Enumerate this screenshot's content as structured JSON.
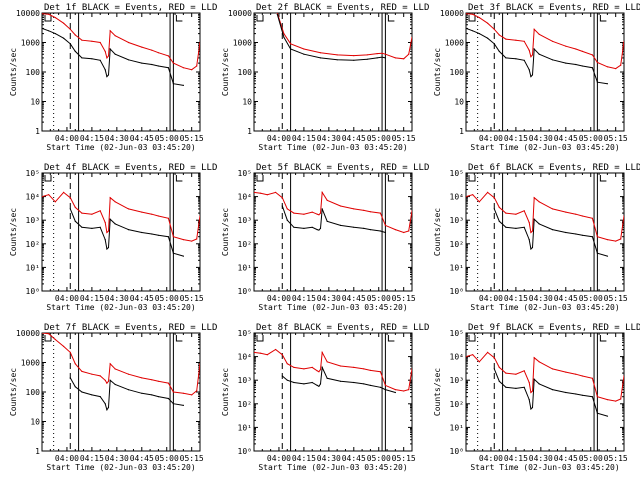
{
  "figure": {
    "xlabel": "Start Time (02-Jun-03 03:45:20)",
    "ylabel": "Counts/sec",
    "x_tick_labels": [
      "04:00",
      "04:15",
      "04:30",
      "04:45",
      "05:00",
      "05:15"
    ],
    "x_range_minutes_after_03_45": [
      0,
      95
    ],
    "colors": {
      "events": "#000000",
      "lld": "#e00000"
    }
  },
  "chart_data": [
    {
      "type": "line",
      "title": "Det 1f BLACK = Events, RED = LLD",
      "yscale": "log",
      "ylim": [
        1,
        10000
      ],
      "y_tick_labels": [
        "1",
        "10",
        "100",
        "1000",
        "10000"
      ],
      "markers": {
        "dotted": 7,
        "dashed": 17,
        "solid": 22,
        "gap_start": 77,
        "gap_end": 79
      },
      "x": [
        0,
        4,
        8,
        13,
        17,
        20,
        24,
        30,
        35,
        38,
        39,
        40,
        41,
        44,
        52,
        60,
        66,
        70,
        76,
        79,
        85,
        90,
        93,
        95
      ],
      "series": [
        {
          "name": "Events",
          "values": [
            3000,
            2500,
            2000,
            1400,
            900,
            500,
            300,
            280,
            250,
            120,
            70,
            80,
            600,
            400,
            260,
            200,
            180,
            160,
            140,
            40,
            35,
            null,
            null,
            null
          ]
        },
        {
          "name": "LLD",
          "values": [
            9500,
            9000,
            7000,
            4500,
            2800,
            1800,
            1200,
            1100,
            1000,
            500,
            300,
            350,
            2500,
            1700,
            1000,
            700,
            550,
            450,
            350,
            200,
            140,
            120,
            160,
            1000
          ]
        }
      ]
    },
    {
      "type": "line",
      "title": "Det 2f BLACK = Events, RED = LLD",
      "yscale": "log",
      "ylim": [
        1,
        10000
      ],
      "y_tick_labels": [
        "1",
        "10",
        "100",
        "1000",
        "10000"
      ],
      "markers": {
        "dotted": null,
        "dashed": 17,
        "solid": 22,
        "gap_start": 77,
        "gap_end": 79
      },
      "x": [
        0,
        3,
        6,
        10,
        14,
        18,
        22,
        30,
        40,
        50,
        60,
        68,
        74,
        77,
        79,
        85,
        90,
        93,
        95
      ],
      "series": [
        {
          "name": "Events",
          "values": [
            null,
            null,
            null,
            null,
            9000,
            1500,
            600,
            400,
            300,
            260,
            250,
            270,
            300,
            320,
            300,
            null,
            null,
            null,
            null
          ]
        },
        {
          "name": "LLD",
          "values": [
            null,
            null,
            null,
            null,
            10000,
            2000,
            900,
            600,
            450,
            380,
            360,
            380,
            420,
            430,
            400,
            300,
            280,
            400,
            1500
          ]
        }
      ]
    },
    {
      "type": "line",
      "title": "Det 3f BLACK = Events, RED = LLD",
      "yscale": "log",
      "ylim": [
        1,
        10000
      ],
      "y_tick_labels": [
        "1",
        "10",
        "100",
        "1000",
        "10000"
      ],
      "markers": {
        "dotted": 7,
        "dashed": 17,
        "solid": 22,
        "gap_start": 77,
        "gap_end": 79
      },
      "x": [
        0,
        4,
        8,
        13,
        17,
        20,
        24,
        30,
        35,
        38,
        39,
        40,
        41,
        44,
        52,
        60,
        66,
        70,
        76,
        79,
        85,
        90,
        93,
        95
      ],
      "series": [
        {
          "name": "Events",
          "values": [
            3000,
            2500,
            2000,
            1400,
            900,
            500,
            300,
            280,
            250,
            120,
            70,
            80,
            600,
            400,
            260,
            200,
            180,
            160,
            140,
            45,
            40,
            null,
            null,
            null
          ]
        },
        {
          "name": "LLD",
          "values": [
            9500,
            9000,
            7000,
            4500,
            2800,
            1800,
            1300,
            1200,
            1100,
            550,
            330,
            380,
            2800,
            1900,
            1100,
            750,
            600,
            500,
            380,
            210,
            150,
            130,
            170,
            1100
          ]
        }
      ]
    },
    {
      "type": "line",
      "title": "Det 4f BLACK = Events, RED = LLD",
      "yscale": "log",
      "ylim": [
        1,
        100000
      ],
      "y_tick_labels": [
        "10⁰",
        "10¹",
        "10²",
        "10³",
        "10⁴",
        "10⁵"
      ],
      "markers": {
        "dotted": 7,
        "dashed": 17,
        "solid": 22,
        "gap_start": 77,
        "gap_end": 79
      },
      "x": [
        0,
        4,
        8,
        13,
        17,
        20,
        24,
        30,
        35,
        38,
        39,
        40,
        41,
        44,
        52,
        60,
        66,
        70,
        76,
        79,
        85,
        90,
        93,
        95
      ],
      "series": [
        {
          "name": "Events",
          "values": [
            null,
            null,
            null,
            null,
            3000,
            900,
            500,
            450,
            500,
            150,
            60,
            70,
            1100,
            700,
            400,
            300,
            260,
            230,
            200,
            40,
            30,
            null,
            null,
            null
          ]
        },
        {
          "name": "LLD",
          "values": [
            10000,
            12000,
            6000,
            15000,
            9000,
            3500,
            2000,
            1800,
            2500,
            800,
            300,
            350,
            9000,
            6000,
            3000,
            2200,
            1800,
            1500,
            1200,
            200,
            150,
            130,
            160,
            1500
          ]
        }
      ]
    },
    {
      "type": "line",
      "title": "Det 5f BLACK = Events, RED = LLD",
      "yscale": "log",
      "ylim": [
        1,
        100000
      ],
      "y_tick_labels": [
        "10⁰",
        "10¹",
        "10²",
        "10³",
        "10⁴",
        "10⁵"
      ],
      "markers": {
        "dotted": null,
        "dashed": 17,
        "solid": 22,
        "gap_start": 77,
        "gap_end": 79
      },
      "x": [
        0,
        4,
        8,
        13,
        17,
        20,
        24,
        30,
        35,
        38,
        39,
        40,
        41,
        44,
        52,
        60,
        66,
        70,
        76,
        79,
        85,
        90,
        93,
        95
      ],
      "series": [
        {
          "name": "Events",
          "values": [
            null,
            null,
            null,
            null,
            4000,
            1000,
            500,
            450,
            500,
            400,
            380,
            450,
            3000,
            900,
            600,
            500,
            450,
            400,
            350,
            300,
            null,
            null,
            null,
            null
          ]
        },
        {
          "name": "LLD",
          "values": [
            15000,
            14000,
            12000,
            15000,
            9000,
            3000,
            2000,
            1800,
            2200,
            1800,
            1700,
            2000,
            15000,
            7000,
            4000,
            3000,
            2600,
            2300,
            2000,
            600,
            400,
            300,
            350,
            2500
          ]
        }
      ]
    },
    {
      "type": "line",
      "title": "Det 6f BLACK = Events, RED = LLD",
      "yscale": "log",
      "ylim": [
        1,
        100000
      ],
      "y_tick_labels": [
        "10⁰",
        "10¹",
        "10²",
        "10³",
        "10⁴",
        "10⁵"
      ],
      "markers": {
        "dotted": 7,
        "dashed": 17,
        "solid": 22,
        "gap_start": 77,
        "gap_end": 79
      },
      "x": [
        0,
        4,
        8,
        13,
        17,
        20,
        24,
        30,
        35,
        38,
        39,
        40,
        41,
        44,
        52,
        60,
        66,
        70,
        76,
        79,
        85,
        90,
        93,
        95
      ],
      "series": [
        {
          "name": "Events",
          "values": [
            null,
            null,
            null,
            null,
            3000,
            900,
            500,
            450,
            500,
            150,
            60,
            70,
            1100,
            700,
            400,
            300,
            260,
            230,
            200,
            40,
            30,
            null,
            null,
            null
          ]
        },
        {
          "name": "LLD",
          "values": [
            10000,
            12000,
            6000,
            15000,
            9000,
            3500,
            2000,
            1800,
            2500,
            800,
            300,
            350,
            9000,
            6000,
            3000,
            2200,
            1800,
            1500,
            1200,
            200,
            150,
            130,
            160,
            1500
          ]
        }
      ]
    },
    {
      "type": "line",
      "title": "Det 7f BLACK = Events, RED = LLD",
      "yscale": "log",
      "ylim": [
        1,
        10000
      ],
      "y_tick_labels": [
        "1",
        "10",
        "100",
        "1000",
        "10000"
      ],
      "markers": {
        "dotted": 7,
        "dashed": 17,
        "solid": 22,
        "gap_start": 77,
        "gap_end": 79
      },
      "x": [
        0,
        4,
        8,
        13,
        17,
        20,
        24,
        30,
        35,
        38,
        39,
        40,
        41,
        44,
        52,
        60,
        66,
        70,
        76,
        79,
        85,
        90,
        93,
        95
      ],
      "series": [
        {
          "name": "Events",
          "values": [
            null,
            null,
            null,
            null,
            300,
            150,
            100,
            80,
            70,
            40,
            25,
            30,
            250,
            180,
            120,
            90,
            80,
            70,
            60,
            40,
            35,
            null,
            null,
            null
          ]
        },
        {
          "name": "LLD",
          "values": [
            10000,
            9500,
            6000,
            3500,
            2200,
            900,
            500,
            400,
            350,
            250,
            200,
            230,
            900,
            600,
            400,
            300,
            260,
            230,
            200,
            100,
            90,
            80,
            110,
            900
          ]
        }
      ]
    },
    {
      "type": "line",
      "title": "Det 8f BLACK = Events, RED = LLD",
      "yscale": "log",
      "ylim": [
        1,
        100000
      ],
      "y_tick_labels": [
        "10⁰",
        "10¹",
        "10²",
        "10³",
        "10⁴",
        "10⁵"
      ],
      "markers": {
        "dotted": null,
        "dashed": 17,
        "solid": 22,
        "gap_start": 77,
        "gap_end": 79
      },
      "x": [
        0,
        4,
        8,
        13,
        17,
        20,
        24,
        30,
        35,
        38,
        39,
        40,
        41,
        44,
        52,
        60,
        66,
        70,
        76,
        79,
        85,
        90,
        93,
        95
      ],
      "series": [
        {
          "name": "Events",
          "values": [
            null,
            null,
            null,
            null,
            1500,
            1000,
            800,
            700,
            800,
            600,
            550,
            700,
            3500,
            1200,
            900,
            800,
            700,
            600,
            500,
            400,
            300,
            null,
            null,
            null
          ]
        },
        {
          "name": "LLD",
          "values": [
            15000,
            14000,
            12000,
            20000,
            12000,
            5000,
            3500,
            3000,
            3500,
            2500,
            2300,
            2800,
            15000,
            6000,
            4000,
            3500,
            3000,
            2600,
            2300,
            600,
            400,
            350,
            400,
            3000
          ]
        }
      ]
    },
    {
      "type": "line",
      "title": "Det 9f BLACK = Events, RED = LLD",
      "yscale": "log",
      "ylim": [
        1,
        100000
      ],
      "y_tick_labels": [
        "10⁰",
        "10¹",
        "10²",
        "10³",
        "10⁴",
        "10⁵"
      ],
      "markers": {
        "dotted": 7,
        "dashed": 17,
        "solid": 22,
        "gap_start": 77,
        "gap_end": 79
      },
      "x": [
        0,
        4,
        8,
        13,
        17,
        20,
        24,
        30,
        35,
        38,
        39,
        40,
        41,
        44,
        52,
        60,
        66,
        70,
        76,
        79,
        85,
        90,
        93,
        95
      ],
      "series": [
        {
          "name": "Events",
          "values": [
            null,
            null,
            null,
            null,
            3000,
            900,
            500,
            450,
            500,
            150,
            60,
            70,
            1100,
            700,
            400,
            300,
            260,
            230,
            200,
            40,
            30,
            null,
            null,
            null
          ]
        },
        {
          "name": "LLD",
          "values": [
            10000,
            12000,
            6000,
            15000,
            9000,
            3500,
            2000,
            1800,
            2500,
            800,
            300,
            350,
            9000,
            6000,
            3000,
            2200,
            1800,
            1500,
            1200,
            200,
            150,
            130,
            160,
            1500
          ]
        }
      ]
    }
  ]
}
